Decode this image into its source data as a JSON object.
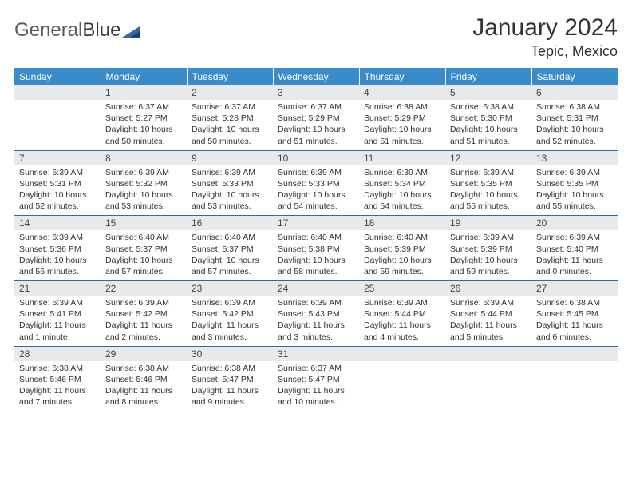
{
  "logo": {
    "word1": "General",
    "word2": "Blue"
  },
  "title": "January 2024",
  "location": "Tepic, Mexico",
  "colors": {
    "header_bg": "#3a8bc9",
    "header_text": "#ffffff",
    "week_divider": "#2e6aa3",
    "daynum_bg": "#e9e9e9",
    "daynum_text": "#444444",
    "body_text": "#333333",
    "logo_accent": "#2e6aa3"
  },
  "weekdays": [
    "Sunday",
    "Monday",
    "Tuesday",
    "Wednesday",
    "Thursday",
    "Friday",
    "Saturday"
  ],
  "weeks": [
    [
      null,
      {
        "n": "1",
        "sunrise": "Sunrise: 6:37 AM",
        "sunset": "Sunset: 5:27 PM",
        "day1": "Daylight: 10 hours",
        "day2": "and 50 minutes."
      },
      {
        "n": "2",
        "sunrise": "Sunrise: 6:37 AM",
        "sunset": "Sunset: 5:28 PM",
        "day1": "Daylight: 10 hours",
        "day2": "and 50 minutes."
      },
      {
        "n": "3",
        "sunrise": "Sunrise: 6:37 AM",
        "sunset": "Sunset: 5:29 PM",
        "day1": "Daylight: 10 hours",
        "day2": "and 51 minutes."
      },
      {
        "n": "4",
        "sunrise": "Sunrise: 6:38 AM",
        "sunset": "Sunset: 5:29 PM",
        "day1": "Daylight: 10 hours",
        "day2": "and 51 minutes."
      },
      {
        "n": "5",
        "sunrise": "Sunrise: 6:38 AM",
        "sunset": "Sunset: 5:30 PM",
        "day1": "Daylight: 10 hours",
        "day2": "and 51 minutes."
      },
      {
        "n": "6",
        "sunrise": "Sunrise: 6:38 AM",
        "sunset": "Sunset: 5:31 PM",
        "day1": "Daylight: 10 hours",
        "day2": "and 52 minutes."
      }
    ],
    [
      {
        "n": "7",
        "sunrise": "Sunrise: 6:39 AM",
        "sunset": "Sunset: 5:31 PM",
        "day1": "Daylight: 10 hours",
        "day2": "and 52 minutes."
      },
      {
        "n": "8",
        "sunrise": "Sunrise: 6:39 AM",
        "sunset": "Sunset: 5:32 PM",
        "day1": "Daylight: 10 hours",
        "day2": "and 53 minutes."
      },
      {
        "n": "9",
        "sunrise": "Sunrise: 6:39 AM",
        "sunset": "Sunset: 5:33 PM",
        "day1": "Daylight: 10 hours",
        "day2": "and 53 minutes."
      },
      {
        "n": "10",
        "sunrise": "Sunrise: 6:39 AM",
        "sunset": "Sunset: 5:33 PM",
        "day1": "Daylight: 10 hours",
        "day2": "and 54 minutes."
      },
      {
        "n": "11",
        "sunrise": "Sunrise: 6:39 AM",
        "sunset": "Sunset: 5:34 PM",
        "day1": "Daylight: 10 hours",
        "day2": "and 54 minutes."
      },
      {
        "n": "12",
        "sunrise": "Sunrise: 6:39 AM",
        "sunset": "Sunset: 5:35 PM",
        "day1": "Daylight: 10 hours",
        "day2": "and 55 minutes."
      },
      {
        "n": "13",
        "sunrise": "Sunrise: 6:39 AM",
        "sunset": "Sunset: 5:35 PM",
        "day1": "Daylight: 10 hours",
        "day2": "and 55 minutes."
      }
    ],
    [
      {
        "n": "14",
        "sunrise": "Sunrise: 6:39 AM",
        "sunset": "Sunset: 5:36 PM",
        "day1": "Daylight: 10 hours",
        "day2": "and 56 minutes."
      },
      {
        "n": "15",
        "sunrise": "Sunrise: 6:40 AM",
        "sunset": "Sunset: 5:37 PM",
        "day1": "Daylight: 10 hours",
        "day2": "and 57 minutes."
      },
      {
        "n": "16",
        "sunrise": "Sunrise: 6:40 AM",
        "sunset": "Sunset: 5:37 PM",
        "day1": "Daylight: 10 hours",
        "day2": "and 57 minutes."
      },
      {
        "n": "17",
        "sunrise": "Sunrise: 6:40 AM",
        "sunset": "Sunset: 5:38 PM",
        "day1": "Daylight: 10 hours",
        "day2": "and 58 minutes."
      },
      {
        "n": "18",
        "sunrise": "Sunrise: 6:40 AM",
        "sunset": "Sunset: 5:39 PM",
        "day1": "Daylight: 10 hours",
        "day2": "and 59 minutes."
      },
      {
        "n": "19",
        "sunrise": "Sunrise: 6:39 AM",
        "sunset": "Sunset: 5:39 PM",
        "day1": "Daylight: 10 hours",
        "day2": "and 59 minutes."
      },
      {
        "n": "20",
        "sunrise": "Sunrise: 6:39 AM",
        "sunset": "Sunset: 5:40 PM",
        "day1": "Daylight: 11 hours",
        "day2": "and 0 minutes."
      }
    ],
    [
      {
        "n": "21",
        "sunrise": "Sunrise: 6:39 AM",
        "sunset": "Sunset: 5:41 PM",
        "day1": "Daylight: 11 hours",
        "day2": "and 1 minute."
      },
      {
        "n": "22",
        "sunrise": "Sunrise: 6:39 AM",
        "sunset": "Sunset: 5:42 PM",
        "day1": "Daylight: 11 hours",
        "day2": "and 2 minutes."
      },
      {
        "n": "23",
        "sunrise": "Sunrise: 6:39 AM",
        "sunset": "Sunset: 5:42 PM",
        "day1": "Daylight: 11 hours",
        "day2": "and 3 minutes."
      },
      {
        "n": "24",
        "sunrise": "Sunrise: 6:39 AM",
        "sunset": "Sunset: 5:43 PM",
        "day1": "Daylight: 11 hours",
        "day2": "and 3 minutes."
      },
      {
        "n": "25",
        "sunrise": "Sunrise: 6:39 AM",
        "sunset": "Sunset: 5:44 PM",
        "day1": "Daylight: 11 hours",
        "day2": "and 4 minutes."
      },
      {
        "n": "26",
        "sunrise": "Sunrise: 6:39 AM",
        "sunset": "Sunset: 5:44 PM",
        "day1": "Daylight: 11 hours",
        "day2": "and 5 minutes."
      },
      {
        "n": "27",
        "sunrise": "Sunrise: 6:38 AM",
        "sunset": "Sunset: 5:45 PM",
        "day1": "Daylight: 11 hours",
        "day2": "and 6 minutes."
      }
    ],
    [
      {
        "n": "28",
        "sunrise": "Sunrise: 6:38 AM",
        "sunset": "Sunset: 5:46 PM",
        "day1": "Daylight: 11 hours",
        "day2": "and 7 minutes."
      },
      {
        "n": "29",
        "sunrise": "Sunrise: 6:38 AM",
        "sunset": "Sunset: 5:46 PM",
        "day1": "Daylight: 11 hours",
        "day2": "and 8 minutes."
      },
      {
        "n": "30",
        "sunrise": "Sunrise: 6:38 AM",
        "sunset": "Sunset: 5:47 PM",
        "day1": "Daylight: 11 hours",
        "day2": "and 9 minutes."
      },
      {
        "n": "31",
        "sunrise": "Sunrise: 6:37 AM",
        "sunset": "Sunset: 5:47 PM",
        "day1": "Daylight: 11 hours",
        "day2": "and 10 minutes."
      },
      null,
      null,
      null
    ]
  ]
}
